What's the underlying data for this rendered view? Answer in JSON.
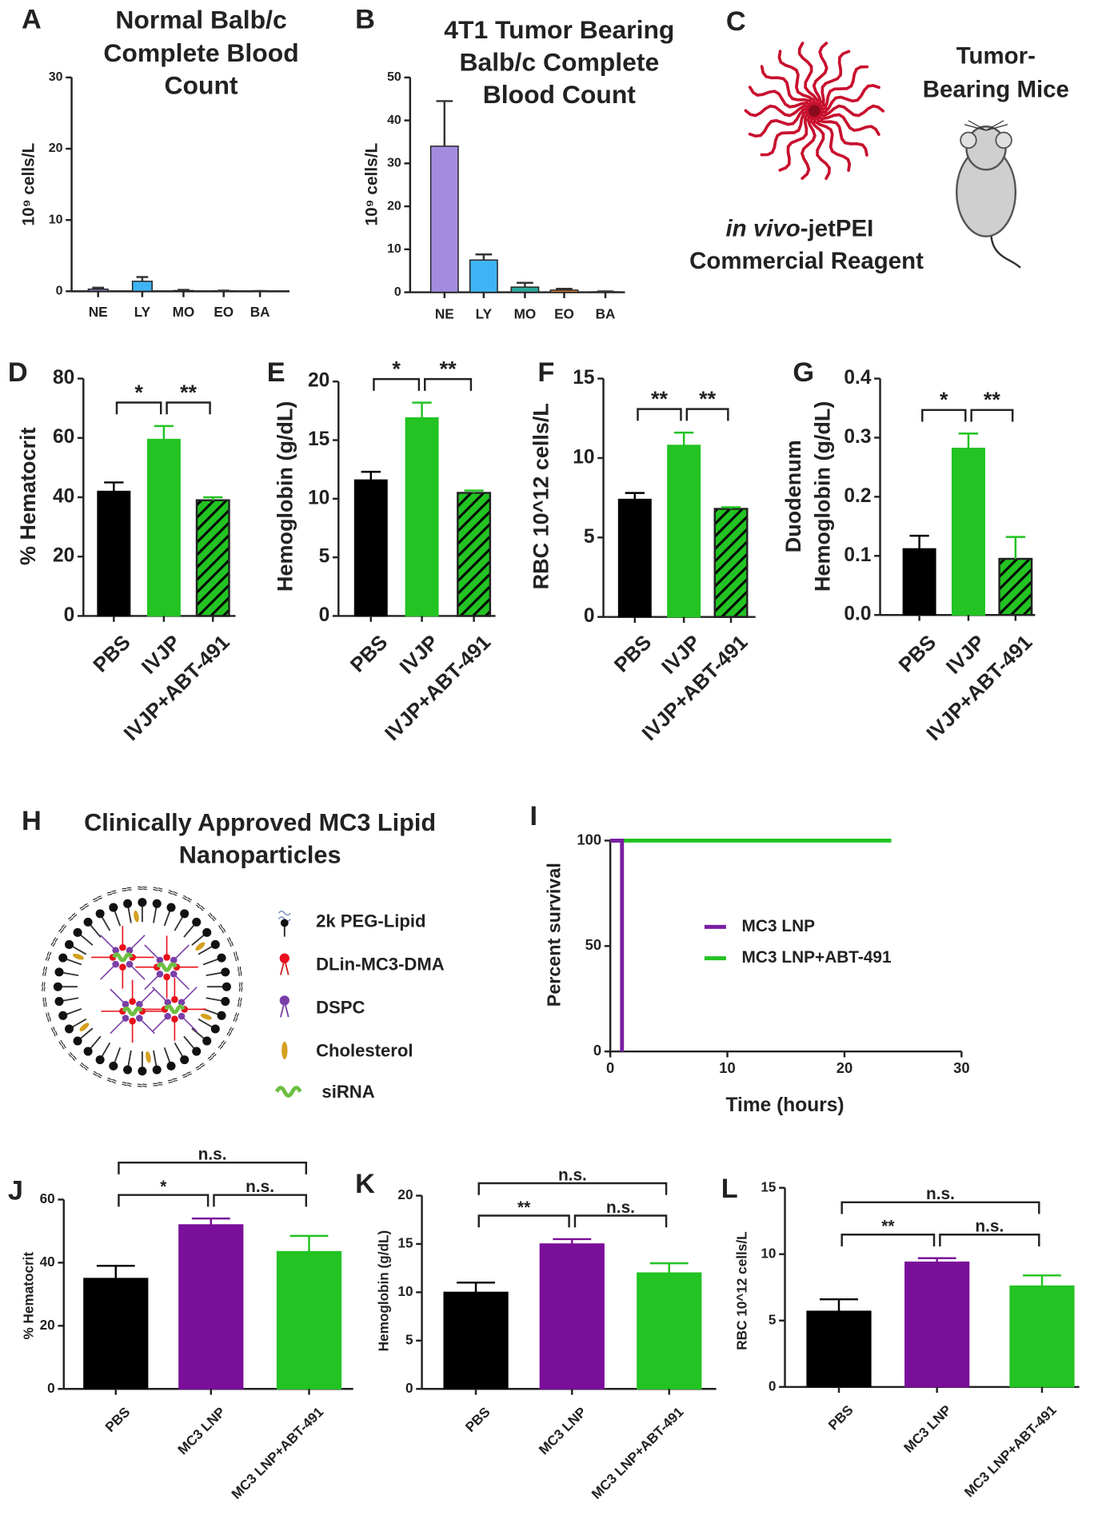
{
  "chart_data": [
    {
      "panel": "A",
      "type": "bar",
      "title": [
        "Normal Balb/c",
        "Complete Blood",
        "Count"
      ],
      "ylabel": "10⁹ cells/L",
      "categories": [
        "NE",
        "LY",
        "MO",
        "EO",
        "BA"
      ],
      "values": [
        0.3,
        1.4,
        0.1,
        0.05,
        0.02
      ],
      "errors": [
        0.2,
        0.6,
        0.1,
        0.05,
        0.02
      ],
      "colors": [
        "#9b7fd6",
        "#3fb4f4",
        "#2aa89a",
        "#f08c3c",
        "#e0403c"
      ],
      "ylim": [
        0,
        30
      ],
      "yticks": [
        0,
        10,
        20,
        30
      ]
    },
    {
      "panel": "B",
      "type": "bar",
      "title": [
        "4T1 Tumor Bearing",
        "Balb/c Complete",
        "Blood Count"
      ],
      "ylabel": "10⁹ cells/L",
      "categories": [
        "NE",
        "LY",
        "MO",
        "EO",
        "BA"
      ],
      "values": [
        34,
        7.5,
        1.2,
        0.5,
        0.1
      ],
      "errors": [
        10.5,
        1.3,
        1,
        0.3,
        0.1
      ],
      "colors": [
        "#a58be0",
        "#3fb4f4",
        "#2aa89a",
        "#f08c3c",
        "#e0403c"
      ],
      "ylim": [
        0,
        50
      ],
      "yticks": [
        0,
        10,
        20,
        30,
        40,
        50
      ]
    },
    {
      "panel": "D",
      "type": "bar",
      "ylabel": "% Hematocrit",
      "categories": [
        "PBS",
        "IVJP",
        "IVJP+ABT-491"
      ],
      "values": [
        42,
        59.5,
        39
      ],
      "errors": [
        3,
        4.5,
        1
      ],
      "colors": [
        "#000000",
        "#22c322",
        "#22c322"
      ],
      "hatched": [
        false,
        false,
        true
      ],
      "ylim": [
        0,
        80
      ],
      "yticks": [
        0,
        20,
        40,
        60,
        80
      ],
      "annotations": [
        {
          "text": "*",
          "pair": [
            0,
            1
          ]
        },
        {
          "text": "**",
          "pair": [
            1,
            2
          ]
        }
      ]
    },
    {
      "panel": "E",
      "type": "bar",
      "ylabel": "Hemoglobin (g/dL)",
      "categories": [
        "PBS",
        "IVJP",
        "IVJP+ABT-491"
      ],
      "values": [
        11.6,
        16.9,
        10.5
      ],
      "errors": [
        0.7,
        1.3,
        0.2
      ],
      "colors": [
        "#000000",
        "#22c322",
        "#22c322"
      ],
      "hatched": [
        false,
        false,
        true
      ],
      "ylim": [
        0,
        20
      ],
      "yticks": [
        0,
        5,
        10,
        15,
        20
      ],
      "annotations": [
        {
          "text": "*",
          "pair": [
            0,
            1
          ]
        },
        {
          "text": "**",
          "pair": [
            1,
            2
          ]
        }
      ]
    },
    {
      "panel": "F",
      "type": "bar",
      "ylabel": "RBC 10^12 cells/L",
      "categories": [
        "PBS",
        "IVJP",
        "IVJP+ABT-491"
      ],
      "values": [
        7.4,
        10.8,
        6.8
      ],
      "errors": [
        0.4,
        0.8,
        0.1
      ],
      "colors": [
        "#000000",
        "#22c322",
        "#22c322"
      ],
      "hatched": [
        false,
        false,
        true
      ],
      "ylim": [
        0,
        15
      ],
      "yticks": [
        0,
        5,
        10,
        15
      ],
      "annotations": [
        {
          "text": "**",
          "pair": [
            0,
            1
          ]
        },
        {
          "text": "**",
          "pair": [
            1,
            2
          ]
        }
      ]
    },
    {
      "panel": "G",
      "type": "bar",
      "ylabel": [
        "Duodenum",
        "Hemoglobin (g/dL)"
      ],
      "categories": [
        "PBS",
        "IVJP",
        "IVJP+ABT-491"
      ],
      "values": [
        0.112,
        0.282,
        0.095
      ],
      "errors": [
        0.022,
        0.025,
        0.037
      ],
      "colors": [
        "#000000",
        "#22c322",
        "#22c322"
      ],
      "hatched": [
        false,
        false,
        true
      ],
      "ylim": [
        0,
        0.4
      ],
      "yticks": [
        {
          "value": 0,
          "label": "0.0"
        },
        0.1,
        0.2,
        0.3,
        0.4
      ],
      "annotations": [
        {
          "text": "*",
          "pair": [
            0,
            1
          ]
        },
        {
          "text": "**",
          "pair": [
            1,
            2
          ]
        }
      ]
    },
    {
      "panel": "I",
      "type": "line",
      "ylabel": "Percent survival",
      "xlabel": "Time (hours)",
      "series": [
        {
          "name": "MC3 LNP",
          "color": "#7a1fa2",
          "x": [
            0,
            1,
            1
          ],
          "values": [
            100,
            100,
            0
          ]
        },
        {
          "name": "MC3 LNP+ABT-491",
          "color": "#22c322",
          "x": [
            0,
            24
          ],
          "values": [
            100,
            100
          ]
        }
      ],
      "xlim": [
        0,
        30
      ],
      "xticks": [
        0,
        10,
        20,
        30
      ],
      "ylim": [
        0,
        100
      ],
      "yticks": [
        0,
        50,
        100
      ]
    },
    {
      "panel": "J",
      "type": "bar",
      "ylabel": "% Hematocrit",
      "categories": [
        "PBS",
        "MC3 LNP",
        "MC3 LNP+ABT-491"
      ],
      "values": [
        35,
        52,
        43.5
      ],
      "errors": [
        4,
        2,
        5
      ],
      "colors": [
        "#000000",
        "#7a0f9a",
        "#22c322"
      ],
      "ylim": [
        0,
        60
      ],
      "yticks": [
        0,
        20,
        40,
        60
      ],
      "annotations": [
        {
          "text": "*",
          "pair": [
            0,
            1
          ]
        },
        {
          "text": "n.s.",
          "pair": [
            1,
            2
          ]
        },
        {
          "text": "n.s.",
          "pair": [
            0,
            2
          ]
        }
      ]
    },
    {
      "panel": "K",
      "type": "bar",
      "ylabel": "Hemoglobin (g/dL)",
      "categories": [
        "PBS",
        "MC3 LNP",
        "MC3 LNP+ABT-491"
      ],
      "values": [
        10,
        15,
        12
      ],
      "errors": [
        1,
        0.5,
        1
      ],
      "colors": [
        "#000000",
        "#7a0f9a",
        "#22c322"
      ],
      "ylim": [
        0,
        20
      ],
      "yticks": [
        0,
        5,
        10,
        15,
        20
      ],
      "annotations": [
        {
          "text": "**",
          "pair": [
            0,
            1
          ]
        },
        {
          "text": "n.s.",
          "pair": [
            1,
            2
          ]
        },
        {
          "text": "n.s.",
          "pair": [
            0,
            2
          ]
        }
      ]
    },
    {
      "panel": "L",
      "type": "bar",
      "ylabel": "RBC 10^12 cells/L",
      "categories": [
        "PBS",
        "MC3 LNP",
        "MC3 LNP+ABT-491"
      ],
      "values": [
        5.7,
        9.4,
        7.6
      ],
      "errors": [
        0.9,
        0.3,
        0.8
      ],
      "colors": [
        "#000000",
        "#7a0f9a",
        "#22c322"
      ],
      "ylim": [
        0,
        15
      ],
      "yticks": [
        0,
        5,
        10,
        15
      ],
      "annotations": [
        {
          "text": "**",
          "pair": [
            0,
            1
          ]
        },
        {
          "text": "n.s.",
          "pair": [
            1,
            2
          ]
        },
        {
          "text": "n.s.",
          "pair": [
            0,
            2
          ]
        }
      ]
    }
  ],
  "diagrams": [
    {
      "panel": "C",
      "reagent_italic": "in vivo",
      "reagent": "-jetPEI",
      "reagent_line2": "Commercial Reagent",
      "mice": [
        "Tumor-",
        "Bearing Mice"
      ]
    },
    {
      "panel": "H",
      "title": [
        "Clinically Approved MC3 Lipid",
        "Nanoparticles"
      ],
      "legend": [
        "2k PEG-Lipid",
        "DLin-MC3-DMA",
        "DSPC",
        "Cholesterol",
        "siRNA"
      ]
    }
  ]
}
